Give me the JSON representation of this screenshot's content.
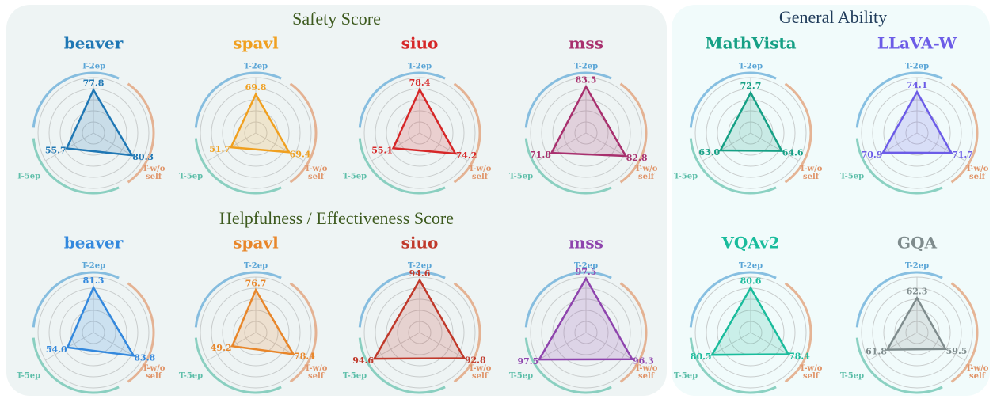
{
  "section_titles": [
    "Safety Score",
    "Helpfulness / Effectiveness Score",
    "General Ability"
  ],
  "chart_data": [
    {
      "type": "radar",
      "title": "beaver",
      "color": "#1f77b4",
      "categories": [
        "T-2ep",
        "T-w/o self",
        "T-5ep"
      ],
      "values": [
        77.8,
        80.3,
        55.7
      ],
      "rlim": [
        0,
        100
      ],
      "rticks": [
        20,
        40,
        60,
        80,
        100
      ],
      "axis_colors": [
        "#5aa5d6",
        "#e0956a",
        "#5fbfaa"
      ],
      "grid": true
    },
    {
      "type": "radar",
      "title": "spavl",
      "color": "#f0a020",
      "categories": [
        "T-2ep",
        "T-w/o self",
        "T-5ep"
      ],
      "values": [
        69.8,
        69.4,
        51.7
      ],
      "rlim": [
        0,
        100
      ],
      "rticks": [
        20,
        40,
        60,
        80,
        100
      ],
      "axis_colors": [
        "#5aa5d6",
        "#e0956a",
        "#5fbfaa"
      ],
      "grid": true
    },
    {
      "type": "radar",
      "title": "siuo",
      "color": "#d62728",
      "categories": [
        "T-2ep",
        "T-w/o self",
        "T-5ep"
      ],
      "values": [
        78.4,
        74.2,
        55.1
      ],
      "rlim": [
        0,
        100
      ],
      "rticks": [
        20,
        40,
        60,
        80,
        100
      ],
      "axis_colors": [
        "#5aa5d6",
        "#e0956a",
        "#5fbfaa"
      ],
      "grid": true
    },
    {
      "type": "radar",
      "title": "mss",
      "color": "#a8306e",
      "categories": [
        "T-2ep",
        "T-w/o self",
        "T-5ep"
      ],
      "values": [
        83.5,
        82.8,
        71.8
      ],
      "rlim": [
        0,
        100
      ],
      "rticks": [
        20,
        40,
        60,
        80,
        100
      ],
      "axis_colors": [
        "#5aa5d6",
        "#e0956a",
        "#5fbfaa"
      ],
      "grid": true
    },
    {
      "type": "radar",
      "title": "MathVista",
      "color": "#16a085",
      "categories": [
        "T-2ep",
        "T-w/o self",
        "T-5ep"
      ],
      "values": [
        72.7,
        64.6,
        63
      ],
      "value_labels": [
        "72.7",
        "64.6",
        "63.0"
      ],
      "rlim": [
        0,
        100
      ],
      "rticks": [
        20,
        40,
        60,
        80,
        100
      ],
      "axis_colors": [
        "#5aa5d6",
        "#e0956a",
        "#5fbfaa"
      ],
      "grid": true
    },
    {
      "type": "radar",
      "title": "LLaVA-W",
      "color": "#6c5ce7",
      "categories": [
        "T-2ep",
        "T-w/o self",
        "T-5ep"
      ],
      "values": [
        74.1,
        71.7,
        70.9
      ],
      "rlim": [
        0,
        100
      ],
      "rticks": [
        20,
        40,
        60,
        80,
        100
      ],
      "axis_colors": [
        "#5aa5d6",
        "#e0956a",
        "#5fbfaa"
      ],
      "grid": true
    },
    {
      "type": "radar",
      "title": "beaver",
      "color": "#3388dd",
      "categories": [
        "T-2ep",
        "T-w/o self",
        "T-5ep"
      ],
      "values": [
        81.3,
        83.8,
        54
      ],
      "value_labels": [
        "81.3",
        "83.8",
        "54.0"
      ],
      "rlim": [
        0,
        100
      ],
      "rticks": [
        20,
        40,
        60,
        80,
        100
      ],
      "axis_colors": [
        "#5aa5d6",
        "#e0956a",
        "#5fbfaa"
      ],
      "grid": true
    },
    {
      "type": "radar",
      "title": "spavl",
      "color": "#e8862a",
      "categories": [
        "T-2ep",
        "T-w/o self",
        "T-5ep"
      ],
      "values": [
        76.7,
        78.4,
        49.2
      ],
      "rlim": [
        0,
        100
      ],
      "rticks": [
        20,
        40,
        60,
        80,
        100
      ],
      "axis_colors": [
        "#5aa5d6",
        "#e0956a",
        "#5fbfaa"
      ],
      "grid": true
    },
    {
      "type": "radar",
      "title": "siuo",
      "color": "#c0392b",
      "categories": [
        "T-2ep",
        "T-w/o self",
        "T-5ep"
      ],
      "values": [
        94.6,
        92.8,
        94.6
      ],
      "rlim": [
        0,
        100
      ],
      "rticks": [
        20,
        40,
        60,
        80,
        100
      ],
      "axis_colors": [
        "#5aa5d6",
        "#e0956a",
        "#5fbfaa"
      ],
      "grid": true
    },
    {
      "type": "radar",
      "title": "mss",
      "color": "#8e44ad",
      "categories": [
        "T-2ep",
        "T-w/o self",
        "T-5ep"
      ],
      "values": [
        97.5,
        96.3,
        97.5
      ],
      "rlim": [
        0,
        100
      ],
      "rticks": [
        20,
        40,
        60,
        80,
        100
      ],
      "axis_colors": [
        "#5aa5d6",
        "#e0956a",
        "#5fbfaa"
      ],
      "grid": true
    },
    {
      "type": "radar",
      "title": "VQAv2",
      "color": "#1abc9c",
      "categories": [
        "T-2ep",
        "T-w/o self",
        "T-5ep"
      ],
      "values": [
        80.6,
        78.4,
        80.5
      ],
      "rlim": [
        0,
        100
      ],
      "rticks": [
        20,
        40,
        60,
        80,
        100
      ],
      "axis_colors": [
        "#5aa5d6",
        "#e0956a",
        "#5fbfaa"
      ],
      "grid": true
    },
    {
      "type": "radar",
      "title": "GQA",
      "color": "#7f8c8d",
      "categories": [
        "T-2ep",
        "T-w/o self",
        "T-5ep"
      ],
      "values": [
        62.3,
        59.5,
        61.8
      ],
      "rlim": [
        0,
        100
      ],
      "rticks": [
        20,
        40,
        60,
        80,
        100
      ],
      "axis_colors": [
        "#5aa5d6",
        "#e0956a",
        "#5fbfaa"
      ],
      "grid": true
    }
  ]
}
